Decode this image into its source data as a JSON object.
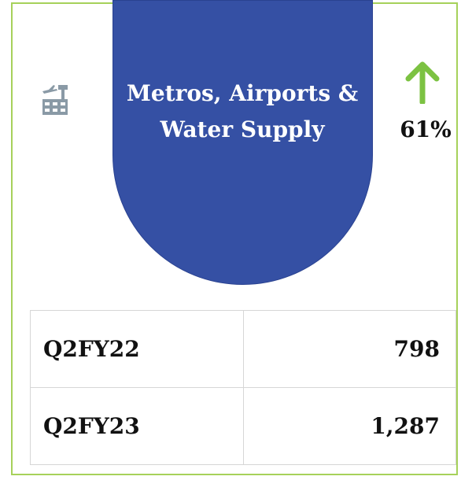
{
  "card": {
    "title": "Metros, Airports & Water Supply",
    "change": "61%",
    "table": {
      "rows": [
        [
          "Q2FY22",
          "798"
        ],
        [
          "Q2FY23",
          "1,287"
        ]
      ]
    }
  }
}
